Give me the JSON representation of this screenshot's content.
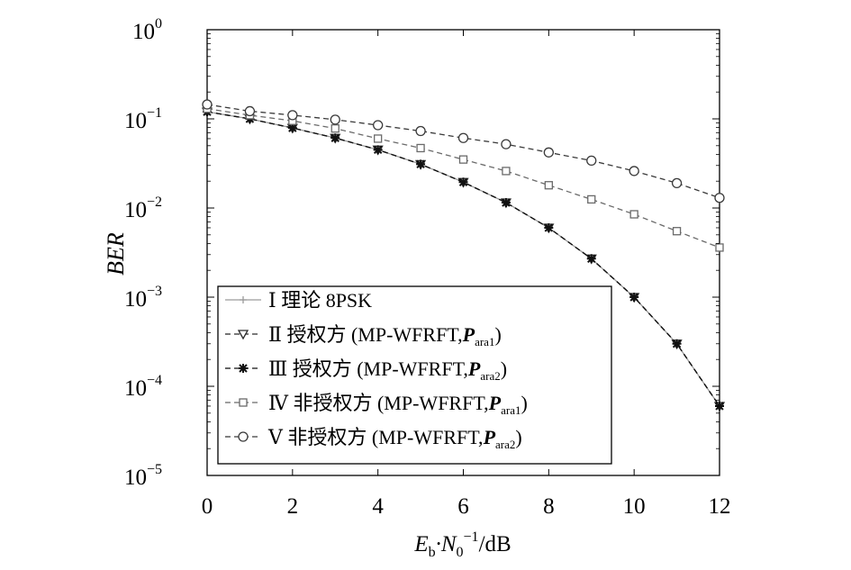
{
  "chart_data": {
    "type": "line",
    "xlabel": {
      "main": "E",
      "sub1": "b",
      "mid": "·N",
      "sub2": "0",
      "sup": "−1",
      "tail": "/dB"
    },
    "ylabel": "BER",
    "y_scale": "log",
    "xlim": [
      0,
      12
    ],
    "ylim": [
      1e-05,
      1
    ],
    "grid": false,
    "legend_position": "bottom-left",
    "x_ticks": [
      0,
      2,
      4,
      6,
      8,
      10,
      12
    ],
    "y_ticks": [
      {
        "value": 1,
        "base": "10",
        "exp": "0"
      },
      {
        "value": 0.1,
        "base": "10",
        "exp": "−1"
      },
      {
        "value": 0.01,
        "base": "10",
        "exp": "−2"
      },
      {
        "value": 0.001,
        "base": "10",
        "exp": "−3"
      },
      {
        "value": 0.0001,
        "base": "10",
        "exp": "−4"
      },
      {
        "value": 1e-05,
        "base": "10",
        "exp": "−5"
      }
    ],
    "x": [
      0,
      1,
      2,
      3,
      4,
      5,
      6,
      7,
      8,
      9,
      10,
      11,
      12
    ],
    "series": [
      {
        "name": "Ⅰ 理论 8PSK",
        "name_main": "Ⅰ 理论 8PSK",
        "name_bold": "",
        "name_sub": "",
        "name_tail": "",
        "marker": "plus",
        "color": "#9a9a9a",
        "dash": "none",
        "values": [
          0.12,
          0.1,
          0.079,
          0.061,
          0.045,
          0.031,
          0.0195,
          0.0115,
          0.006,
          0.0027,
          0.001,
          0.0003,
          6e-05
        ]
      },
      {
        "name": "Ⅱ 授权方 (MP-WFRFT,Para1)",
        "name_main": "Ⅱ 授权方 (MP-WFRFT,",
        "name_bold": "P",
        "name_sub": "ara1",
        "name_tail": ")",
        "marker": "triangle-down",
        "color": "#2a2a2a",
        "dash": "6,4",
        "values": [
          0.12,
          0.1,
          0.079,
          0.061,
          0.045,
          0.031,
          0.0195,
          0.0115,
          0.006,
          0.0027,
          0.001,
          0.0003,
          6e-05
        ]
      },
      {
        "name": "Ⅲ 授权方 (MP-WFRFT,Para2)",
        "name_main": "Ⅲ 授权方 (MP-WFRFT,",
        "name_bold": "P",
        "name_sub": "ara2",
        "name_tail": ")",
        "marker": "asterisk",
        "color": "#111111",
        "dash": "6,4",
        "values": [
          0.12,
          0.1,
          0.079,
          0.061,
          0.045,
          0.031,
          0.0195,
          0.0115,
          0.006,
          0.0027,
          0.001,
          0.0003,
          6e-05
        ]
      },
      {
        "name": "Ⅳ 非授权方 (MP-WFRFT,Para1)",
        "name_main": "Ⅳ 非授权方 (MP-WFRFT,",
        "name_bold": "P",
        "name_sub": "ara1",
        "name_tail": ")",
        "marker": "square",
        "color": "#6a6a6a",
        "dash": "6,4",
        "values": [
          0.13,
          0.11,
          0.095,
          0.078,
          0.06,
          0.047,
          0.035,
          0.026,
          0.018,
          0.0125,
          0.0085,
          0.0055,
          0.0036
        ]
      },
      {
        "name": "Ⅴ 非授权方 (MP-WFRFT,Para2)",
        "name_main": "Ⅴ 非授权方 (MP-WFRFT,",
        "name_bold": "P",
        "name_sub": "ara2",
        "name_tail": ")",
        "marker": "circle",
        "color": "#3a3a3a",
        "dash": "6,4",
        "values": [
          0.145,
          0.122,
          0.11,
          0.098,
          0.085,
          0.073,
          0.061,
          0.052,
          0.042,
          0.034,
          0.026,
          0.019,
          0.013
        ]
      }
    ]
  }
}
